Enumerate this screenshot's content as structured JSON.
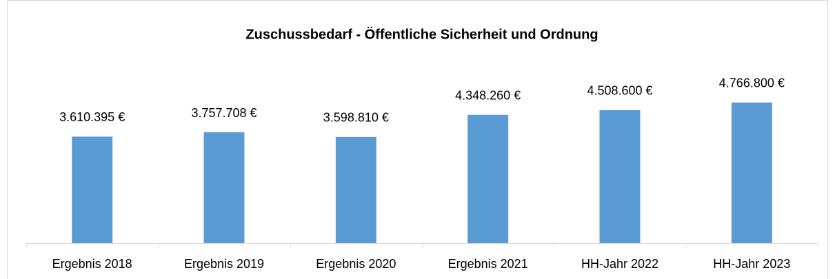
{
  "chart_data": {
    "type": "bar",
    "title": "Zuschussbedarf - Öffentliche Sicherheit und Ordnung",
    "categories": [
      "Ergebnis 2018",
      "Ergebnis 2019",
      "Ergebnis 2020",
      "Ergebnis 2021",
      "HH-Jahr 2022",
      "HH-Jahr 2023"
    ],
    "values": [
      3610395,
      3757708,
      3598810,
      4348260,
      4508600,
      4766800
    ],
    "value_labels": [
      "3.610.395 €",
      "3.757.708 €",
      "3.598.810 €",
      "4.348.260 €",
      "4.508.600 €",
      "4.766.800 €"
    ],
    "color": "#5b9bd5",
    "ylim": [
      0,
      6000000
    ]
  }
}
